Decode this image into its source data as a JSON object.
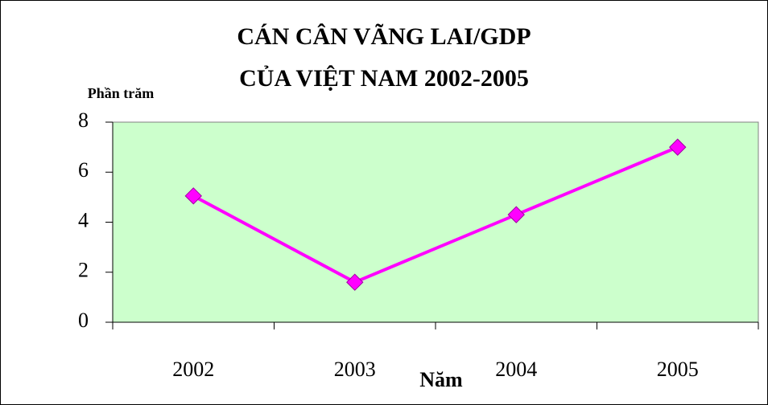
{
  "chart_data": {
    "type": "line",
    "title": [
      "CÁN CÂN VÃNG LAI/GDP",
      "CỦA VIỆT NAM 2002-2005"
    ],
    "y_label": "Phần trăm",
    "x_label": "Năm",
    "categories": [
      "2002",
      "2003",
      "2004",
      "2005"
    ],
    "series": [
      {
        "name": "Cán cân vãng lai/GDP",
        "color": "#ff00ff",
        "values": [
          5.05,
          1.6,
          4.3,
          7.0
        ]
      }
    ],
    "ylim": [
      0,
      8
    ],
    "yticks": [
      0,
      2,
      4,
      6,
      8
    ],
    "grid": false,
    "plot_background": "#ccffcc"
  }
}
